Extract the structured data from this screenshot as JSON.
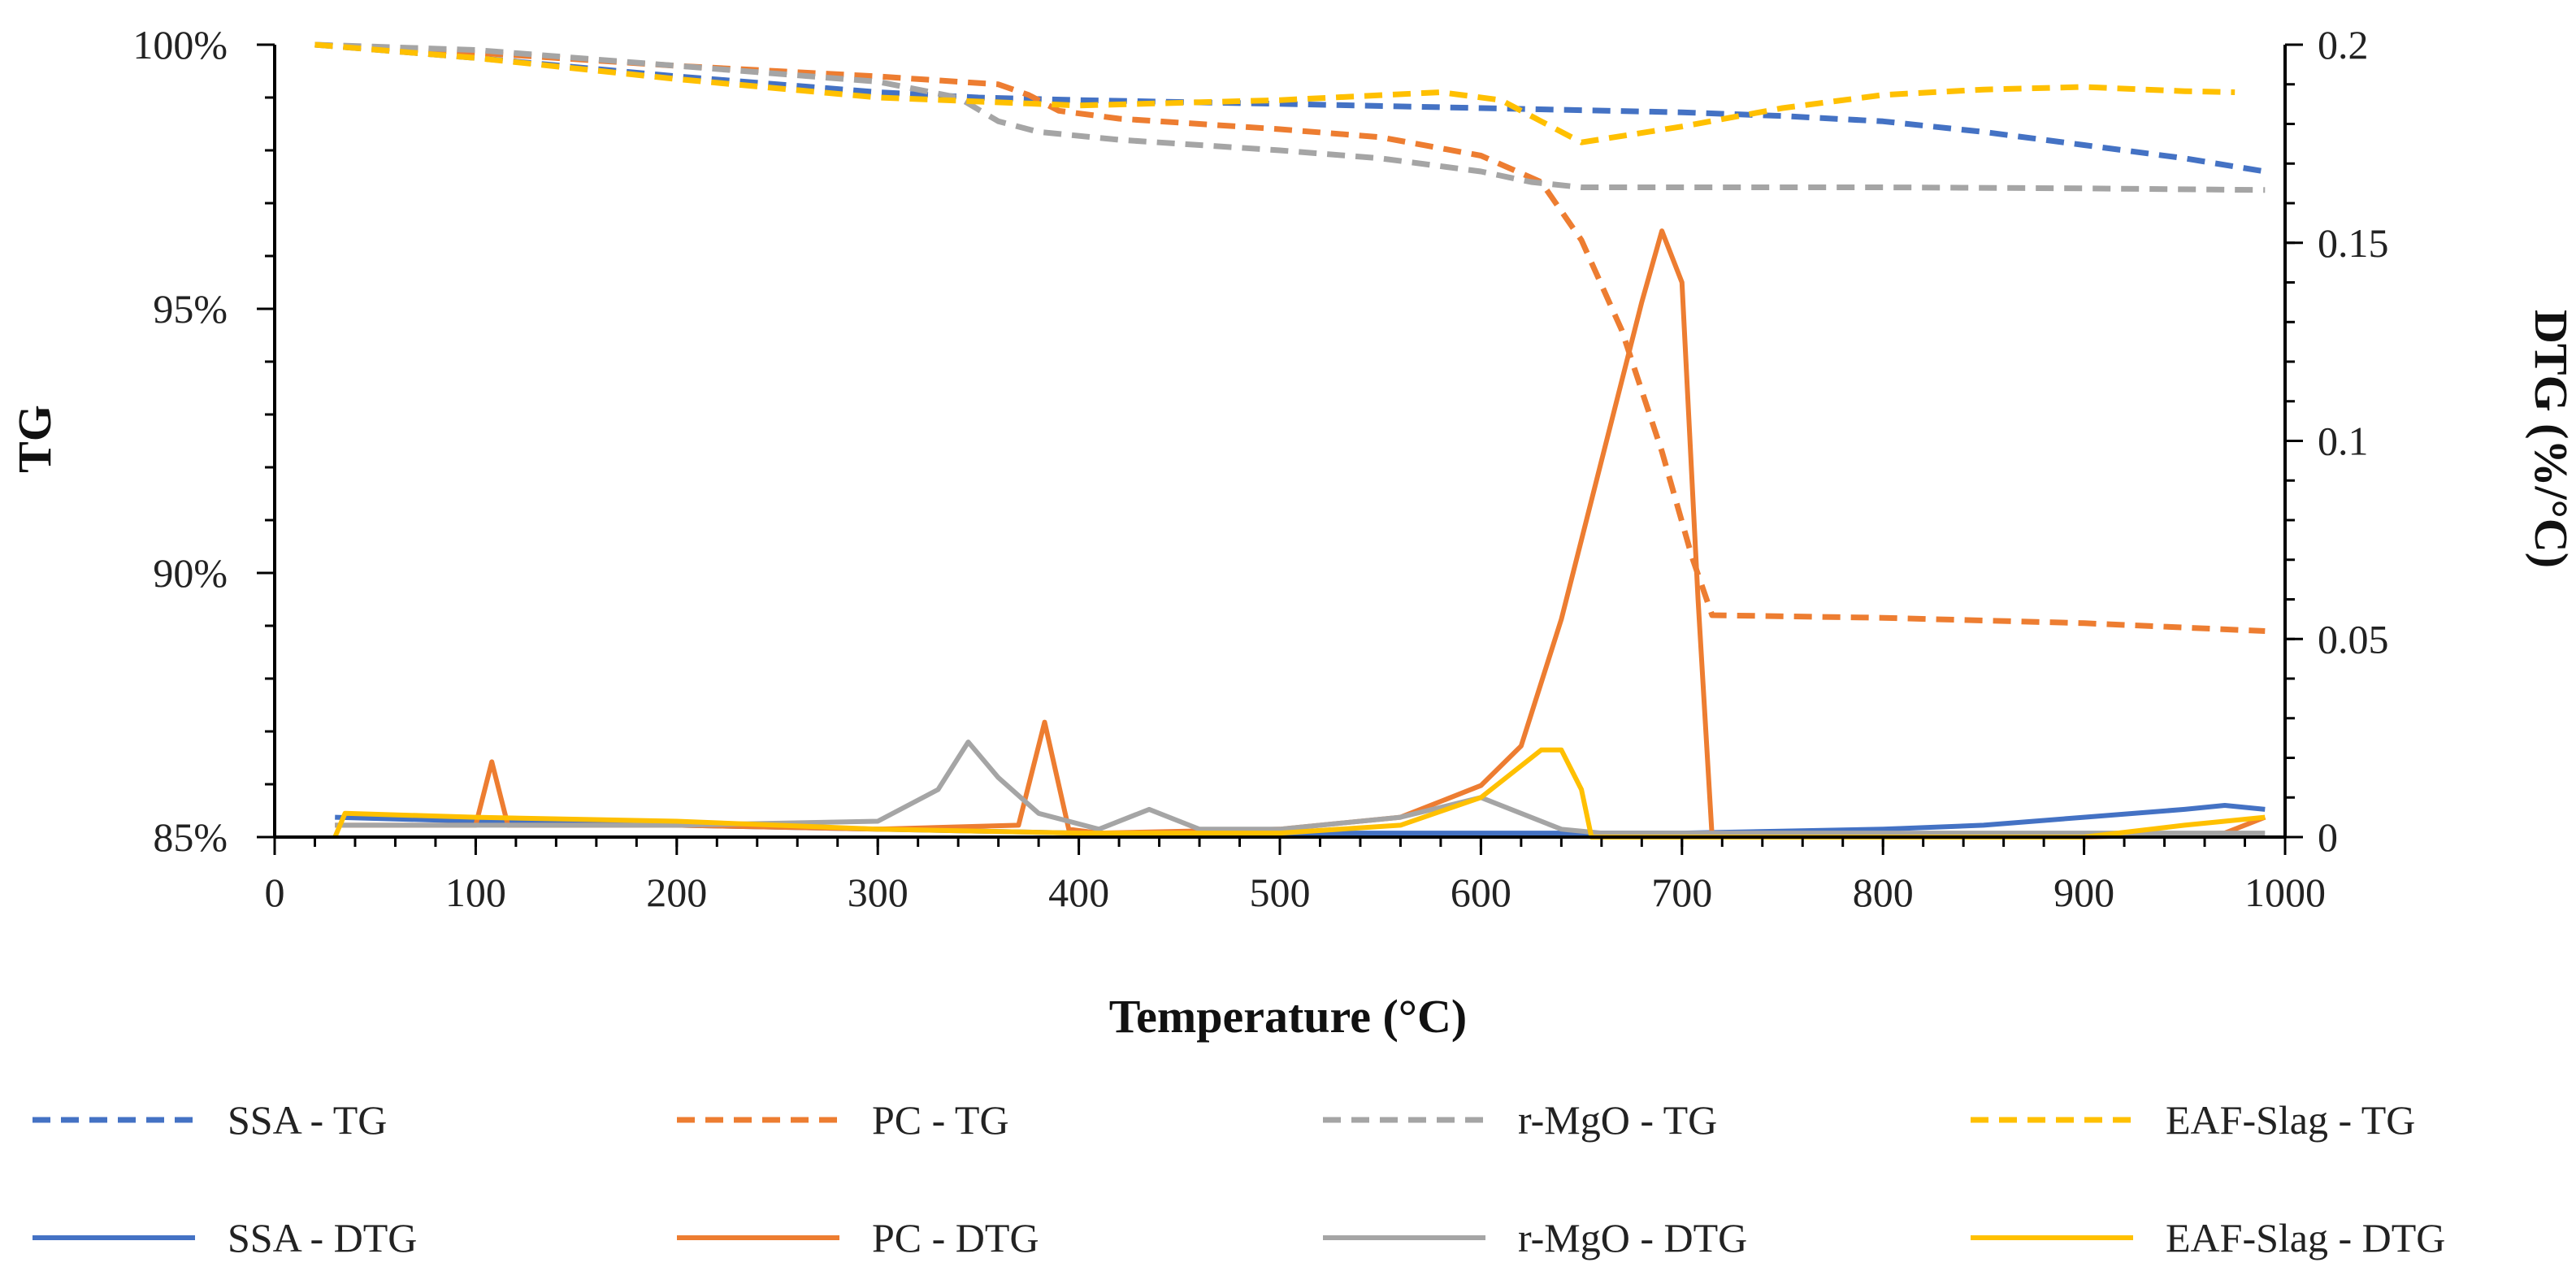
{
  "chart_data": {
    "type": "line",
    "xlabel": "Temperature (°C)",
    "ylabel_left": "TG",
    "ylabel_right": "DTG (%/°C)",
    "xlim": [
      0,
      1000
    ],
    "ylim_left": [
      85,
      100
    ],
    "ylim_right": [
      0,
      0.2
    ],
    "x_ticks": [
      0,
      100,
      200,
      300,
      400,
      500,
      600,
      700,
      800,
      900,
      1000
    ],
    "x_tick_labels": [
      "0",
      "100",
      "200",
      "300",
      "400",
      "500",
      "600",
      "700",
      "800",
      "900",
      "1000"
    ],
    "y_left_ticks": [
      85,
      90,
      95,
      100
    ],
    "y_left_tick_labels": [
      "85%",
      "90%",
      "95%",
      "100%"
    ],
    "y_right_ticks": [
      0,
      0.05,
      0.1,
      0.15,
      0.2
    ],
    "y_right_tick_labels": [
      "0",
      "0.05",
      "0.1",
      "0.15",
      "0.2"
    ],
    "legend_position": "bottom",
    "series": [
      {
        "name": "SSA - TG",
        "axis": "left",
        "style": "dashed",
        "color": "#4472C4",
        "x": [
          20,
          100,
          200,
          300,
          350,
          400,
          500,
          600,
          700,
          750,
          800,
          850,
          900,
          950,
          990
        ],
        "y": [
          100,
          99.75,
          99.4,
          99.1,
          99.0,
          98.95,
          98.88,
          98.8,
          98.72,
          98.65,
          98.55,
          98.35,
          98.1,
          97.85,
          97.6
        ]
      },
      {
        "name": "PC - TG",
        "axis": "left",
        "style": "dashed",
        "color": "#ED7D31",
        "x": [
          20,
          100,
          200,
          300,
          360,
          375,
          390,
          420,
          500,
          550,
          600,
          630,
          650,
          670,
          690,
          705,
          715,
          800,
          900,
          990
        ],
        "y": [
          100,
          99.85,
          99.6,
          99.4,
          99.25,
          99.05,
          98.75,
          98.6,
          98.4,
          98.25,
          97.9,
          97.4,
          96.3,
          94.6,
          92.3,
          90.3,
          89.2,
          89.15,
          89.05,
          88.9
        ]
      },
      {
        "name": "r-MgO - TG",
        "axis": "left",
        "style": "dashed",
        "color": "#A5A5A5",
        "x": [
          20,
          100,
          200,
          300,
          340,
          360,
          380,
          420,
          500,
          550,
          600,
          625,
          650,
          700,
          800,
          900,
          990
        ],
        "y": [
          100,
          99.9,
          99.6,
          99.3,
          99.0,
          98.55,
          98.35,
          98.2,
          98.0,
          97.85,
          97.6,
          97.4,
          97.3,
          97.3,
          97.3,
          97.28,
          97.25
        ]
      },
      {
        "name": "EAF-Slag - TG",
        "axis": "left",
        "style": "dashed",
        "color": "#FFC000",
        "x": [
          20,
          100,
          200,
          300,
          400,
          500,
          580,
          610,
          630,
          650,
          700,
          750,
          800,
          850,
          900,
          950,
          975
        ],
        "y": [
          100,
          99.75,
          99.35,
          99.0,
          98.85,
          98.95,
          99.1,
          98.95,
          98.55,
          98.15,
          98.45,
          98.8,
          99.05,
          99.15,
          99.2,
          99.12,
          99.1
        ]
      },
      {
        "name": "SSA - DTG",
        "axis": "right",
        "style": "solid",
        "color": "#4472C4",
        "x": [
          30,
          100,
          200,
          300,
          400,
          500,
          600,
          700,
          800,
          850,
          900,
          950,
          970,
          990
        ],
        "y": [
          0.005,
          0.004,
          0.003,
          0.002,
          0.001,
          0.001,
          0.001,
          0.001,
          0.002,
          0.003,
          0.005,
          0.007,
          0.008,
          0.007
        ]
      },
      {
        "name": "PC - DTG",
        "axis": "right",
        "style": "solid",
        "color": "#ED7D31",
        "x": [
          30,
          100,
          108,
          116,
          200,
          300,
          370,
          383,
          395,
          410,
          500,
          560,
          600,
          620,
          640,
          660,
          680,
          690,
          700,
          708,
          715,
          800,
          900,
          970,
          990
        ],
        "y": [
          0.003,
          0.003,
          0.019,
          0.003,
          0.003,
          0.002,
          0.003,
          0.029,
          0.002,
          0.001,
          0.002,
          0.005,
          0.013,
          0.023,
          0.055,
          0.095,
          0.135,
          0.153,
          0.14,
          0.06,
          0.0,
          0.0,
          0.0,
          0.001,
          0.005
        ]
      },
      {
        "name": "r-MgO - DTG",
        "axis": "right",
        "style": "solid",
        "color": "#A5A5A5",
        "x": [
          30,
          100,
          200,
          300,
          330,
          345,
          360,
          380,
          410,
          435,
          460,
          500,
          560,
          600,
          640,
          660,
          700,
          800,
          990
        ],
        "y": [
          0.003,
          0.003,
          0.003,
          0.004,
          0.012,
          0.024,
          0.015,
          0.006,
          0.002,
          0.007,
          0.002,
          0.002,
          0.005,
          0.01,
          0.002,
          0.001,
          0.001,
          0.001,
          0.001
        ]
      },
      {
        "name": "EAF-Slag - DTG",
        "axis": "right",
        "style": "solid",
        "color": "#FFC000",
        "x": [
          30,
          35,
          100,
          200,
          300,
          400,
          500,
          560,
          600,
          620,
          630,
          640,
          650,
          655,
          700,
          800,
          900,
          950,
          990
        ],
        "y": [
          0.0,
          0.006,
          0.005,
          0.004,
          0.002,
          0.001,
          0.001,
          0.003,
          0.01,
          0.018,
          0.022,
          0.022,
          0.012,
          0.0,
          0.0,
          0.0,
          0.0,
          0.003,
          0.005
        ]
      }
    ]
  }
}
